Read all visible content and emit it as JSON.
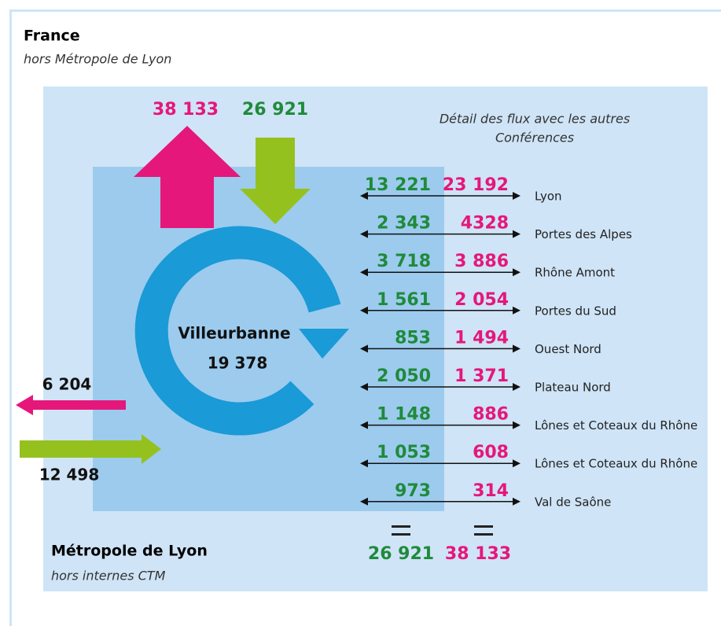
{
  "header": {
    "title": "France",
    "subtitle": "hors Métropole de Lyon"
  },
  "top_flows": {
    "out": "38 133",
    "in": "26 921"
  },
  "center": {
    "name": "Villeurbanne",
    "value": "19 378"
  },
  "left_flows": {
    "out": "6 204",
    "in": "12 498"
  },
  "detail": {
    "title": [
      "Détail des flux avec les autres",
      "Conférences"
    ],
    "rows": [
      {
        "in": "13 221",
        "out": "23 192",
        "label": "Lyon"
      },
      {
        "in": "2 343",
        "out": "4328",
        "label": "Portes des Alpes"
      },
      {
        "in": "3 718",
        "out": "3 886",
        "label": "Rhône Amont"
      },
      {
        "in": "1 561",
        "out": "2 054",
        "label": "Portes du Sud"
      },
      {
        "in": "853",
        "out": "1 494",
        "label": "Ouest Nord"
      },
      {
        "in": "2 050",
        "out": "1 371",
        "label": "Plateau Nord"
      },
      {
        "in": "1 148",
        "out": "886",
        "label": "Lônes et Coteaux du Rhône"
      },
      {
        "in": "1 053",
        "out": "608",
        "label": "Lônes et Coteaux du Rhône"
      },
      {
        "in": "973",
        "out": "314",
        "label": "Val de Saône"
      }
    ]
  },
  "totals": {
    "in": "26 921",
    "out": "38 133"
  },
  "footer": {
    "title": "Métropole de Lyon",
    "subtitle": "hors internes CTM"
  }
}
